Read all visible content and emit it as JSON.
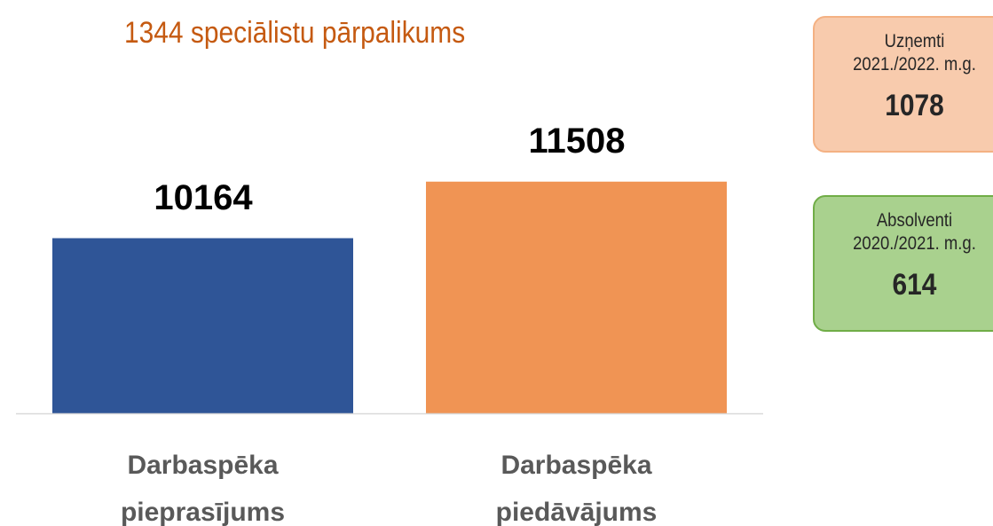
{
  "chart_data": {
    "type": "bar",
    "title": "1344 speciālistu pārpalikums",
    "categories": [
      "Darbaspēka pieprasījums",
      "Darbaspēka piedāvājums"
    ],
    "values": [
      10164,
      11508
    ],
    "colors": [
      "#2f5597",
      "#f09454"
    ],
    "ylim": [
      6000,
      13000
    ]
  },
  "boxes": [
    {
      "label": [
        "Uzņemti",
        "2021./2022. m.g."
      ],
      "value": 1078,
      "fill": "#f8cbad",
      "border": "#f4b183"
    },
    {
      "label": [
        "Absolventi",
        "2020./2021. m.g."
      ],
      "value": 614,
      "fill": "#a9d18e",
      "border": "#70ad47"
    }
  ]
}
